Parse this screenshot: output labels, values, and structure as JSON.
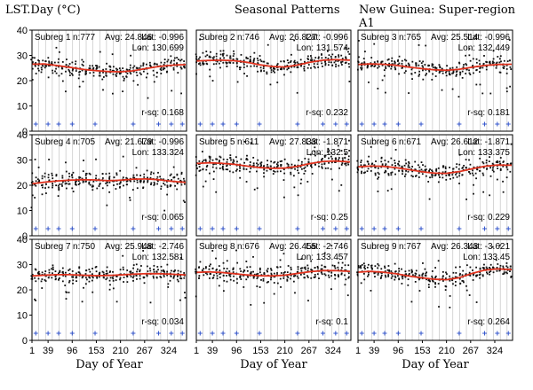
{
  "header": {
    "left_title": "LST.Day (°C)",
    "center_title": "Seasonal Patterns",
    "right_title": "New Guinea: Super-region A1"
  },
  "chart_data": {
    "type": "scatter",
    "xlabel": "Day of Year",
    "x_ticks": [
      1,
      39,
      96,
      153,
      210,
      267,
      324
    ],
    "x_range": [
      1,
      366
    ],
    "y_ticks": [
      0,
      10,
      20,
      30,
      40
    ],
    "ylim": [
      0,
      40
    ],
    "grid": "vertical lines",
    "colors": {
      "points": "#111111",
      "fit": "#e0321e",
      "marker": "#3355cc",
      "grid": "#bbbbbb"
    },
    "panels": [
      {
        "label": "Subreg 1",
        "n": "n:777",
        "avg": "Avg: 24.846",
        "lat": "Lat: -0.996",
        "lon": "Lon: 130.699",
        "rsq": "r-sq: 0.168",
        "fit": [
          [
            1,
            26.5
          ],
          [
            30,
            26.6
          ],
          [
            60,
            26.0
          ],
          [
            90,
            25.3
          ],
          [
            120,
            24.5
          ],
          [
            150,
            24.0
          ],
          [
            180,
            23.6
          ],
          [
            210,
            23.5
          ],
          [
            240,
            23.9
          ],
          [
            270,
            24.8
          ],
          [
            300,
            25.6
          ],
          [
            330,
            26.1
          ],
          [
            366,
            26.4
          ]
        ]
      },
      {
        "label": "Subreg 2",
        "n": "n:746",
        "avg": "Avg: 26.827",
        "lat": "Lat: -0.996",
        "lon": "Lon: 131.574",
        "rsq": "r-sq: 0.232",
        "fit": [
          [
            1,
            27.8
          ],
          [
            30,
            28.0
          ],
          [
            60,
            28.1
          ],
          [
            90,
            27.9
          ],
          [
            120,
            27.3
          ],
          [
            150,
            26.3
          ],
          [
            180,
            25.6
          ],
          [
            210,
            25.4
          ],
          [
            240,
            26.2
          ],
          [
            270,
            27.3
          ],
          [
            300,
            28.1
          ],
          [
            330,
            28.3
          ],
          [
            366,
            28.1
          ]
        ]
      },
      {
        "label": "Subreg 3",
        "n": "n:765",
        "avg": "Avg: 25.514",
        "lat": "Lat: -0.996",
        "lon": "Lon: 132.449",
        "rsq": "r-sq: 0.181",
        "fit": [
          [
            1,
            26.4
          ],
          [
            30,
            26.6
          ],
          [
            60,
            26.5
          ],
          [
            90,
            26.1
          ],
          [
            120,
            25.4
          ],
          [
            150,
            24.8
          ],
          [
            180,
            24.3
          ],
          [
            210,
            24.1
          ],
          [
            240,
            24.5
          ],
          [
            270,
            25.3
          ],
          [
            300,
            26.0
          ],
          [
            330,
            26.4
          ],
          [
            366,
            26.5
          ]
        ]
      },
      {
        "label": "Subreg 4",
        "n": "n:705",
        "avg": "Avg: 21.679",
        "lat": "Lat: -0.996",
        "lon": "Lon: 133.324",
        "rsq": "r-sq: 0.065",
        "fit": [
          [
            1,
            20.6
          ],
          [
            30,
            21.2
          ],
          [
            60,
            21.7
          ],
          [
            90,
            22.0
          ],
          [
            120,
            22.2
          ],
          [
            150,
            22.1
          ],
          [
            180,
            21.8
          ],
          [
            210,
            22.0
          ],
          [
            240,
            22.4
          ],
          [
            270,
            22.5
          ],
          [
            300,
            22.2
          ],
          [
            330,
            21.6
          ],
          [
            366,
            21.1
          ]
        ]
      },
      {
        "label": "Subreg 5",
        "n": "n:611",
        "avg": "Avg: 27.833",
        "lat": "Lat: -1.871",
        "lon": "Lon: 132.5",
        "rsq": "r-sq: 0.25",
        "fit": [
          [
            1,
            28.6
          ],
          [
            30,
            28.9
          ],
          [
            60,
            28.7
          ],
          [
            90,
            28.3
          ],
          [
            120,
            27.6
          ],
          [
            150,
            27.0
          ],
          [
            180,
            26.7
          ],
          [
            210,
            26.8
          ],
          [
            240,
            27.5
          ],
          [
            270,
            28.6
          ],
          [
            300,
            29.4
          ],
          [
            330,
            29.6
          ],
          [
            366,
            29.2
          ]
        ]
      },
      {
        "label": "Subreg 6",
        "n": "n:671",
        "avg": "Avg: 26.612",
        "lat": "Lat: -1.871",
        "lon": "Lon: 133.375",
        "rsq": "r-sq: 0.229",
        "fit": [
          [
            1,
            27.3
          ],
          [
            30,
            27.6
          ],
          [
            60,
            27.5
          ],
          [
            90,
            27.0
          ],
          [
            120,
            26.2
          ],
          [
            150,
            25.4
          ],
          [
            180,
            24.8
          ],
          [
            210,
            24.7
          ],
          [
            240,
            25.4
          ],
          [
            270,
            26.5
          ],
          [
            300,
            27.5
          ],
          [
            330,
            28.0
          ],
          [
            366,
            27.9
          ]
        ]
      },
      {
        "label": "Subreg 7",
        "n": "n:750",
        "avg": "Avg: 25.948",
        "lat": "Lat: -2.746",
        "lon": "Lon: 132.581",
        "rsq": "r-sq: 0.034",
        "fit": [
          [
            1,
            25.5
          ],
          [
            30,
            25.8
          ],
          [
            60,
            26.0
          ],
          [
            90,
            26.0
          ],
          [
            120,
            25.8
          ],
          [
            150,
            25.6
          ],
          [
            180,
            25.7
          ],
          [
            210,
            25.9
          ],
          [
            240,
            26.2
          ],
          [
            270,
            26.4
          ],
          [
            300,
            26.4
          ],
          [
            330,
            26.2
          ],
          [
            366,
            25.9
          ]
        ]
      },
      {
        "label": "Subreg 8",
        "n": "n:676",
        "avg": "Avg: 26.455",
        "lat": "Lat: -2.746",
        "lon": "Lon: 133.457",
        "rsq": "r-sq: 0.1",
        "fit": [
          [
            1,
            26.9
          ],
          [
            30,
            27.1
          ],
          [
            60,
            26.9
          ],
          [
            90,
            26.4
          ],
          [
            120,
            25.9
          ],
          [
            150,
            25.6
          ],
          [
            180,
            25.5
          ],
          [
            210,
            25.8
          ],
          [
            240,
            26.5
          ],
          [
            270,
            27.2
          ],
          [
            300,
            27.6
          ],
          [
            330,
            27.6
          ],
          [
            366,
            27.3
          ]
        ]
      },
      {
        "label": "Subreg 9",
        "n": "n:767",
        "avg": "Avg: 26.343",
        "lat": "Lat: -3.621",
        "lon": "Lon: 133.45",
        "rsq": "r-sq: 0.264",
        "fit": [
          [
            1,
            27.0
          ],
          [
            30,
            27.3
          ],
          [
            60,
            27.0
          ],
          [
            90,
            26.4
          ],
          [
            120,
            25.5
          ],
          [
            150,
            24.8
          ],
          [
            180,
            24.2
          ],
          [
            210,
            24.0
          ],
          [
            240,
            24.8
          ],
          [
            270,
            26.5
          ],
          [
            300,
            27.8
          ],
          [
            330,
            28.3
          ],
          [
            366,
            28.0
          ]
        ]
      }
    ]
  }
}
